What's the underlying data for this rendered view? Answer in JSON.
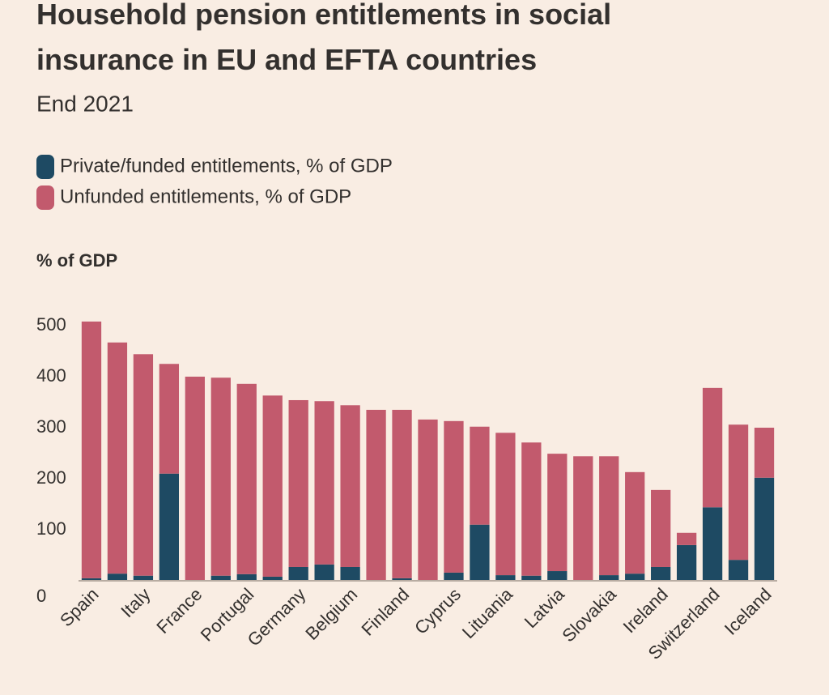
{
  "chart_data": {
    "type": "stacked-bar",
    "title": "Household pension entitlements in social insurance in EU and EFTA countries",
    "subtitle": "End 2021",
    "y_label": "% of GDP",
    "categories": [
      "Spain",
      null,
      "Italy",
      null,
      "France",
      null,
      "Portugal",
      null,
      "Germany",
      null,
      "Belgium",
      null,
      "Finland",
      null,
      "Cyprus",
      null,
      "Lituania",
      null,
      "Latvia",
      null,
      "Slovakia",
      null,
      "Ireland",
      null,
      "Switzerland",
      null,
      "Iceland"
    ],
    "series": [
      {
        "name": "Private/funded entitlements, % of GDP",
        "color": "#1e4a63",
        "values": [
          5,
          14,
          10,
          210,
          1,
          10,
          13,
          8,
          27,
          32,
          27,
          0,
          5,
          0,
          16,
          110,
          11,
          10,
          19,
          0,
          11,
          14,
          27,
          70,
          144,
          41,
          202
        ]
      },
      {
        "name": "Unfunded entitlements, % of GDP",
        "color": "#c25a6d",
        "values": [
          503,
          453,
          434,
          215,
          399,
          388,
          373,
          355,
          327,
          320,
          317,
          335,
          330,
          316,
          297,
          192,
          279,
          261,
          230,
          244,
          233,
          199,
          151,
          24,
          234,
          265,
          98
        ]
      }
    ],
    "ylim": [
      0,
      550
    ],
    "yticks": [
      0,
      100,
      200,
      300,
      400,
      500
    ],
    "grid": false
  }
}
